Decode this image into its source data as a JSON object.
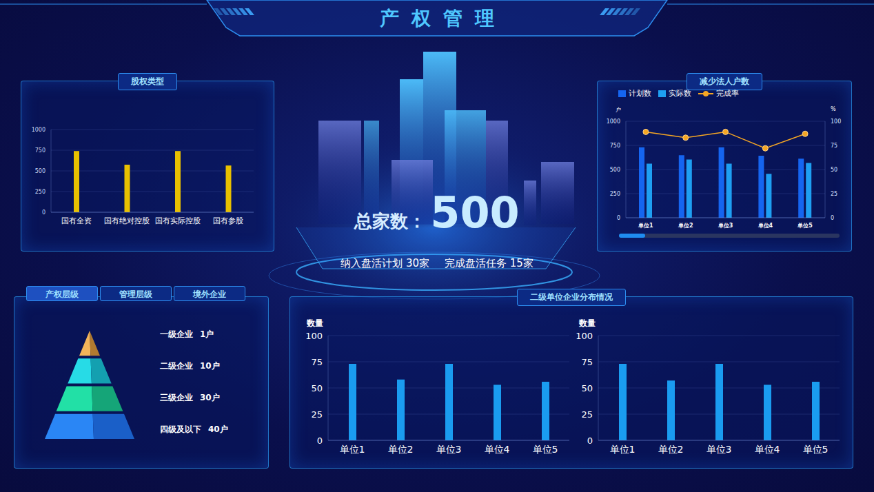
{
  "title": "产权管理",
  "summary": {
    "label": "总家数：",
    "value": 500,
    "items": [
      {
        "label": "纳入盘活计划",
        "value": 30,
        "unit": "家"
      },
      {
        "label": "完成盘活任务",
        "value": 15,
        "unit": "家"
      }
    ]
  },
  "hierarchy": {
    "tabs": [
      "产权层级",
      "管理层级",
      "境外企业"
    ],
    "levels": [
      {
        "label": "一级企业",
        "value": 1,
        "unit": "户"
      },
      {
        "label": "二级企业",
        "value": 10,
        "unit": "户"
      },
      {
        "label": "三级企业",
        "value": 30,
        "unit": "户"
      },
      {
        "label": "四级及以下",
        "value": 40,
        "unit": "户"
      }
    ]
  },
  "chart_data": [
    {
      "type": "bar",
      "title": "股权类型",
      "categories": [
        "国有全资",
        "国有绝对控股",
        "国有实际控股",
        "国有参股"
      ],
      "values": [
        740,
        575,
        740,
        565
      ],
      "color": "#e8c000",
      "ylim": [
        0,
        1000
      ],
      "yticks": [
        0,
        250,
        500,
        750,
        1000
      ],
      "grid": true
    },
    {
      "type": "bar",
      "title": "减少法人户数",
      "categories": [
        "单位1",
        "单位2",
        "单位3",
        "单位4",
        "单位5"
      ],
      "series": [
        {
          "name": "计划数",
          "type": "bar",
          "color": "#1565f0",
          "values": [
            731,
            649,
            731,
            642,
            612
          ]
        },
        {
          "name": "实际数",
          "type": "bar",
          "color": "#1e9ff2",
          "values": [
            560,
            604,
            560,
            455,
            567
          ]
        },
        {
          "name": "完成率",
          "type": "line",
          "color": "#f5a623",
          "marker": "circle",
          "axis": "y2",
          "values": [
            89,
            83,
            89,
            72,
            87
          ]
        }
      ],
      "y_label": "户",
      "y2_label": "%",
      "ylim": [
        0,
        1000
      ],
      "yticks": [
        0,
        250,
        500,
        750,
        1000
      ],
      "y2lim": [
        0,
        100
      ],
      "y2ticks": [
        0,
        25,
        50,
        75,
        100
      ],
      "grid": true,
      "legend": "top-left"
    },
    {
      "type": "bar",
      "title": "二级单位企业分布情况",
      "y_label": "数量",
      "categories": [
        "单位1",
        "单位2",
        "单位3",
        "单位4",
        "单位5"
      ],
      "values": [
        73,
        58,
        73,
        53,
        56
      ],
      "color": "#1a9cf0",
      "ylim": [
        0,
        100
      ],
      "yticks": [
        0,
        25,
        50,
        75,
        100
      ],
      "grid": true
    },
    {
      "type": "bar",
      "y_label": "数量",
      "categories": [
        "单位1",
        "单位2",
        "单位3",
        "单位4",
        "单位5"
      ],
      "values": [
        73,
        57,
        73,
        53,
        56
      ],
      "color": "#1a9cf0",
      "ylim": [
        0,
        100
      ],
      "yticks": [
        0,
        25,
        50,
        75,
        100
      ],
      "grid": true
    }
  ]
}
